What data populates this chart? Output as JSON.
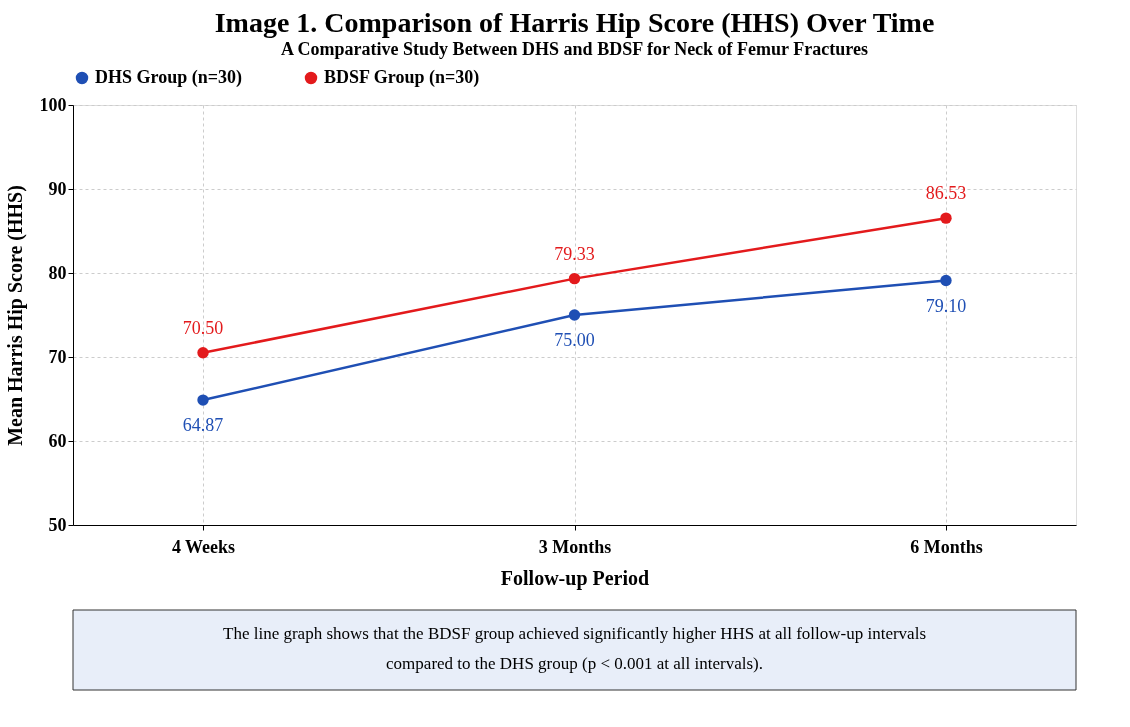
{
  "chart_data": {
    "type": "line",
    "title": "Image 1. Comparison of Harris Hip Score (HHS) Over Time",
    "subtitle": "A Comparative Study Between DHS and BDSF for Neck of Femur Fractures",
    "xlabel": "Follow-up Period",
    "ylabel": "Mean Harris Hip Score (HHS)",
    "categories": [
      "4 Weeks",
      "3 Months",
      "6 Months"
    ],
    "series": [
      {
        "name": "DHS Group (n=30)",
        "color": "#1f4fb4",
        "values": [
          64.87,
          75.0,
          79.1
        ],
        "value_labels": [
          "64.87",
          "75.00",
          "79.10"
        ]
      },
      {
        "name": "BDSF Group (n=30)",
        "color": "#e31a1c",
        "values": [
          70.5,
          79.33,
          86.53
        ],
        "value_labels": [
          "70.50",
          "79.33",
          "86.53"
        ]
      }
    ],
    "ylim": [
      50,
      100
    ],
    "yticks": [
      50,
      60,
      70,
      80,
      90,
      100
    ],
    "grid": true,
    "legend": "top",
    "marker": "circle",
    "line_style": "solid",
    "annotations": [
      "The line graph shows that the BDSF group achieved significantly higher HHS at all follow-up intervals compared to the DHS group (p < 0.001 at all intervals)."
    ]
  }
}
